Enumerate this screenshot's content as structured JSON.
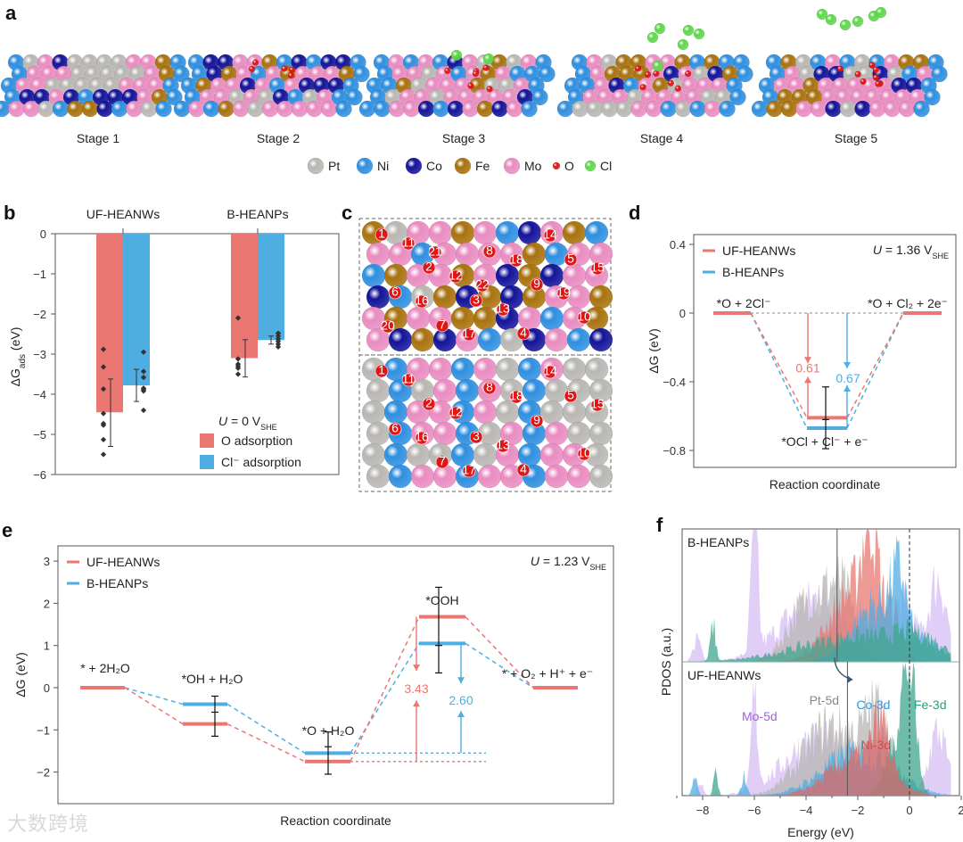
{
  "panel_labels": {
    "a": "a",
    "b": "b",
    "c": "c",
    "d": "d",
    "e": "e",
    "f": "f"
  },
  "panel_a": {
    "stages": [
      "Stage 1",
      "Stage 2",
      "Stage 3",
      "Stage 4",
      "Stage 5"
    ],
    "legend": [
      {
        "label": "Pt",
        "color": "#b9b7b3"
      },
      {
        "label": "Ni",
        "color": "#2f8fe0"
      },
      {
        "label": "Co",
        "color": "#14149a"
      },
      {
        "label": "Fe",
        "color": "#a8720e"
      },
      {
        "label": "Mo",
        "color": "#e98cc1"
      },
      {
        "label": "O",
        "color": "#e01515"
      },
      {
        "label": "Cl",
        "color": "#5fd84a"
      }
    ]
  },
  "panel_c": {
    "top_site_labels": [
      "1",
      "2",
      "3",
      "4",
      "5",
      "6",
      "7",
      "8",
      "9",
      "10",
      "11",
      "12",
      "13",
      "14",
      "15",
      "16",
      "17",
      "18",
      "19",
      "20",
      "21",
      "22"
    ],
    "bottom_site_labels": [
      "1",
      "2",
      "3",
      "4",
      "5",
      "6",
      "7",
      "8",
      "9",
      "10",
      "11",
      "12",
      "13",
      "14",
      "15",
      "16",
      "17",
      "18"
    ]
  },
  "colors": {
    "uf": "#ea7772",
    "b": "#4eaee2",
    "error": "#333333"
  },
  "chart_data": [
    {
      "panel": "b",
      "type": "bar",
      "categories": [
        "UF-HEANWs",
        "B-HEANPs"
      ],
      "ylabel": "ΔG",
      "ylabel_sub": "ads",
      "ylabel_unit": " (eV)",
      "ylim": [
        -6,
        0
      ],
      "yticks": [
        "0",
        "−1",
        "−2",
        "−3",
        "−4",
        "−5",
        "−6"
      ],
      "annotation": {
        "u": "U",
        "eq": " = 0 V",
        "sub": "SHE"
      },
      "legend": [
        "O adsorption",
        "Cl⁻ adsorption"
      ],
      "series": [
        {
          "name": "O adsorption",
          "values": [
            -4.45,
            -3.1
          ],
          "error_low": [
            -5.3,
            -3.57
          ],
          "error_high": [
            -3.62,
            -2.64
          ],
          "points": [
            [
              -2.88,
              -3.32,
              -3.87,
              -4.48,
              -4.73,
              -4.77,
              -5.13,
              -5.5
            ],
            [
              -2.1,
              -3.12,
              -3.25,
              -3.3,
              -3.35,
              -3.5
            ]
          ]
        },
        {
          "name": "Cl⁻ adsorption",
          "values": [
            -3.78,
            -2.65
          ],
          "error_low": [
            -4.18,
            -2.75
          ],
          "error_high": [
            -3.38,
            -2.55
          ],
          "points": [
            [
              -2.95,
              -3.43,
              -3.58,
              -3.85,
              -3.88,
              -3.92,
              -4.4
            ],
            [
              -2.48,
              -2.55,
              -2.62,
              -2.68,
              -2.75,
              -2.82
            ]
          ]
        }
      ]
    },
    {
      "panel": "d",
      "type": "line",
      "title_annotation": {
        "u": "U",
        "eq": " = 1.36 V",
        "sub": "SHE"
      },
      "xlabel": "Reaction coordinate",
      "ylabel": "ΔG (eV)",
      "ylim": [
        -0.9,
        0.5
      ],
      "yticks": [
        {
          "v": 0.4,
          "t": "0.4"
        },
        {
          "v": 0,
          "t": "0"
        },
        {
          "v": -0.4,
          "t": "−0.4"
        },
        {
          "v": -0.8,
          "t": "−0.8"
        }
      ],
      "states": [
        "*O + 2Cl⁻",
        "*OCl + Cl⁻ + e⁻",
        "*O + Cl₂ + 2e⁻"
      ],
      "series": [
        {
          "name": "UF-HEANWs",
          "values": [
            0,
            -0.61,
            0
          ],
          "barrier_label": "0.61"
        },
        {
          "name": "B-HEANPs",
          "values": [
            0,
            -0.67,
            0
          ],
          "barrier_label": "0.67"
        }
      ],
      "error": {
        "state": 1,
        "low": -0.79,
        "mid": -0.62,
        "high": -0.43
      }
    },
    {
      "panel": "e",
      "type": "line",
      "title_annotation": {
        "u": "U",
        "eq": " = 1.23 V",
        "sub": "SHE"
      },
      "xlabel": "Reaction coordinate",
      "ylabel": "ΔG (eV)",
      "ylim": [
        -2.5,
        3.5
      ],
      "yticks": [
        {
          "v": 3,
          "t": "3"
        },
        {
          "v": 2,
          "t": "2"
        },
        {
          "v": 1,
          "t": "1"
        },
        {
          "v": 0,
          "t": "0"
        },
        {
          "v": -1,
          "t": "−1"
        },
        {
          "v": -2,
          "t": "−2"
        }
      ],
      "states": [
        "* + 2H₂O",
        "*OH + H₂O",
        "*O + H₂O",
        "*OOH",
        "* + O₂ + H⁺ + e⁻"
      ],
      "series": [
        {
          "name": "UF-HEANWs",
          "values": [
            0,
            -0.86,
            -1.75,
            1.68,
            0
          ],
          "barrier_label": "3.43"
        },
        {
          "name": "B-HEANPs",
          "values": [
            0,
            -0.39,
            -1.55,
            1.05,
            0
          ],
          "barrier_label": "2.60"
        }
      ],
      "errors": [
        {
          "state": 1,
          "low": -1.15,
          "mid": -0.58,
          "high": -0.2
        },
        {
          "state": 2,
          "low": -2.05,
          "mid": -1.4,
          "high": -1.05
        },
        {
          "state": 3,
          "low": 0.35,
          "mid": 1.0,
          "high": 2.38
        }
      ]
    },
    {
      "panel": "f",
      "type": "area",
      "xlabel": "Energy (eV)",
      "ylabel": "PDOS (a.u.)",
      "xlim": [
        -9,
        2
      ],
      "xticks": [
        {
          "v": -8,
          "t": "−8"
        },
        {
          "v": -6,
          "t": "−6"
        },
        {
          "v": -4,
          "t": "−4"
        },
        {
          "v": -2,
          "t": "−2"
        },
        {
          "v": 0,
          "t": "0"
        },
        {
          "v": 2,
          "t": "2"
        }
      ],
      "d_band_centers": [
        -2.8,
        -2.4
      ],
      "subplots": [
        {
          "name": "B-HEANPs",
          "series": [
            {
              "name": "Mo-5d",
              "color": "#c9a6f0",
              "peaks": [
                [
                  -6,
                  1.2,
                  0.12
                ],
                [
                  -3.5,
                  0.5,
                  1.4
                ],
                [
                  -0.2,
                  0.45,
                  0.4
                ],
                [
                  1.1,
                  0.65,
                  0.35
                ],
                [
                  -8.2,
                  0.2,
                  0.15
                ]
              ]
            },
            {
              "name": "Pt-5d",
              "color": "#b7b5b3",
              "peaks": [
                [
                  -3.8,
                  0.5,
                  0.8
                ],
                [
                  -2.6,
                  0.45,
                  0.5
                ]
              ]
            },
            {
              "name": "Ni-3d",
              "color": "#ea7772",
              "peaks": [
                [
                  -2.2,
                  0.55,
                  0.9
                ],
                [
                  -1.5,
                  0.75,
                  0.3
                ],
                [
                  -0.6,
                  0.3,
                  0.3
                ]
              ]
            },
            {
              "name": "Co-3d",
              "color": "#4eaee2",
              "peaks": [
                [
                  -1.3,
                  0.45,
                  0.9
                ],
                [
                  -0.4,
                  0.45,
                  0.3
                ],
                [
                  0.8,
                  0.12,
                  0.6
                ]
              ]
            },
            {
              "name": "Fe-3d",
              "color": "#3fa68f",
              "peaks": [
                [
                  -7.6,
                  0.28,
                  0.1
                ],
                [
                  -2,
                  0.2,
                  2.2
                ],
                [
                  0.3,
                  0.12,
                  0.8
                ]
              ]
            }
          ]
        },
        {
          "name": "UF-HEANWs",
          "series": [
            {
              "name": "Mo-5d",
              "color": "#c9a6f0",
              "peaks": [
                [
                  -6,
                  0.7,
                  0.12
                ],
                [
                  -3.5,
                  0.45,
                  1.3
                ],
                [
                  1.1,
                  0.5,
                  0.35
                ],
                [
                  -8.1,
                  0.12,
                  0.1
                ]
              ]
            },
            {
              "name": "Pt-5d",
              "color": "#b7b5b3",
              "peaks": [
                [
                  -3,
                  0.55,
                  1.1
                ],
                [
                  -1.2,
                  0.55,
                  0.5
                ]
              ]
            },
            {
              "name": "Co-3d",
              "color": "#4eaee2",
              "peaks": [
                [
                  -2,
                  0.35,
                  1.3
                ],
                [
                  -6.4,
                  0.15,
                  0.1
                ],
                [
                  -8.3,
                  0.12,
                  0.1
                ]
              ]
            },
            {
              "name": "Fe-3d",
              "color": "#3fa68f",
              "peaks": [
                [
                  0,
                  0.85,
                  0.25
                ],
                [
                  -0.5,
                  0.45,
                  0.4
                ],
                [
                  -7.5,
                  0.2,
                  0.08
                ]
              ]
            },
            {
              "name": "Ni-3d",
              "color": "#d86a6a",
              "peaks": [
                [
                  -2,
                  0.3,
                  1.1
                ],
                [
                  -1.1,
                  0.4,
                  0.3
                ]
              ]
            }
          ]
        }
      ]
    }
  ],
  "watermark": "大数跨境"
}
